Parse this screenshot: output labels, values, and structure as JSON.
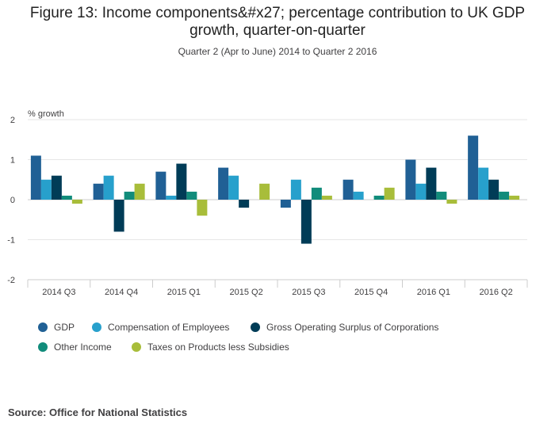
{
  "title_line1": "Figure 13: Income components&#x27; percentage contribution to UK GDP",
  "title_line2": "growth, quarter-on-quarter",
  "subtitle": "Quarter 2 (Apr to June) 2014 to Quarter 2 2016",
  "source": "Source: Office for National Statistics",
  "chart_data": {
    "type": "bar",
    "title": "Figure 13: Income components&#x27; percentage contribution to UK GDP growth, quarter-on-quarter",
    "subtitle": "Quarter 2 (Apr to June) 2014 to Quarter 2 2016",
    "xlabel": "",
    "ylabel": "% growth",
    "ylim": [
      -2,
      2
    ],
    "yticks": [
      2,
      1,
      0,
      -1,
      -2
    ],
    "ytick_labels": [
      "2",
      "1",
      "0",
      "-1",
      "-2"
    ],
    "grid": true,
    "legend_position": "bottom",
    "categories": [
      "2014 Q3",
      "2014 Q4",
      "2015 Q1",
      "2015 Q2",
      "2015 Q3",
      "2015 Q4",
      "2016 Q1",
      "2016 Q2"
    ],
    "series": [
      {
        "name": "GDP",
        "color": "#206095",
        "values": [
          1.1,
          0.4,
          0.7,
          0.8,
          -0.2,
          0.5,
          1.0,
          1.6
        ]
      },
      {
        "name": "Compensation of Employees",
        "color": "#27a0cc",
        "values": [
          0.5,
          0.6,
          0.1,
          0.6,
          0.5,
          0.2,
          0.4,
          0.8
        ]
      },
      {
        "name": "Gross Operating Surplus of Corporations",
        "color": "#003c57",
        "values": [
          0.6,
          -0.8,
          0.9,
          -0.2,
          -1.1,
          0.0,
          0.8,
          0.5
        ]
      },
      {
        "name": "Other Income",
        "color": "#118c7b",
        "values": [
          0.1,
          0.2,
          0.2,
          0.0,
          0.3,
          0.1,
          0.2,
          0.2
        ]
      },
      {
        "name": "Taxes on Products less Subsidies",
        "color": "#a8bd3a",
        "values": [
          -0.1,
          0.4,
          -0.4,
          0.4,
          0.1,
          0.3,
          -0.1,
          0.1
        ]
      }
    ]
  }
}
